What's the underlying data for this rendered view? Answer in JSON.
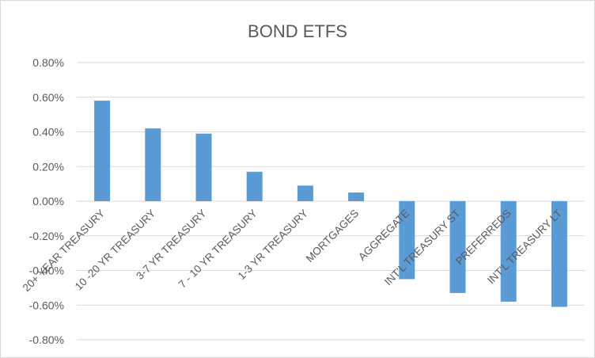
{
  "chart_data": {
    "type": "bar",
    "title": "BOND ETFS",
    "xlabel": "",
    "ylabel": "",
    "categories": [
      "20+ YEAR TREASURY",
      "10 -20 YR TREASURY",
      "3-7 YR TREASURY",
      "7 - 10 YR TREASURY",
      "1-3 YR TREASURY",
      "MORTGAGES",
      "AGGREGATE",
      "INT'L TREASURY ST",
      "PREFERREDS",
      "INT'L TREASURY LT"
    ],
    "values": [
      0.58,
      0.42,
      0.39,
      0.17,
      0.09,
      0.05,
      -0.45,
      -0.53,
      -0.58,
      -0.61
    ],
    "value_unit": "%",
    "ylim": [
      -0.8,
      0.8
    ],
    "yticks": [
      "0.80%",
      "0.60%",
      "0.40%",
      "0.20%",
      "0.00%",
      "-0.20%",
      "-0.40%",
      "-0.60%",
      "-0.80%"
    ],
    "grid": true,
    "legend": "none",
    "bar_color": "#5b9bd5"
  }
}
